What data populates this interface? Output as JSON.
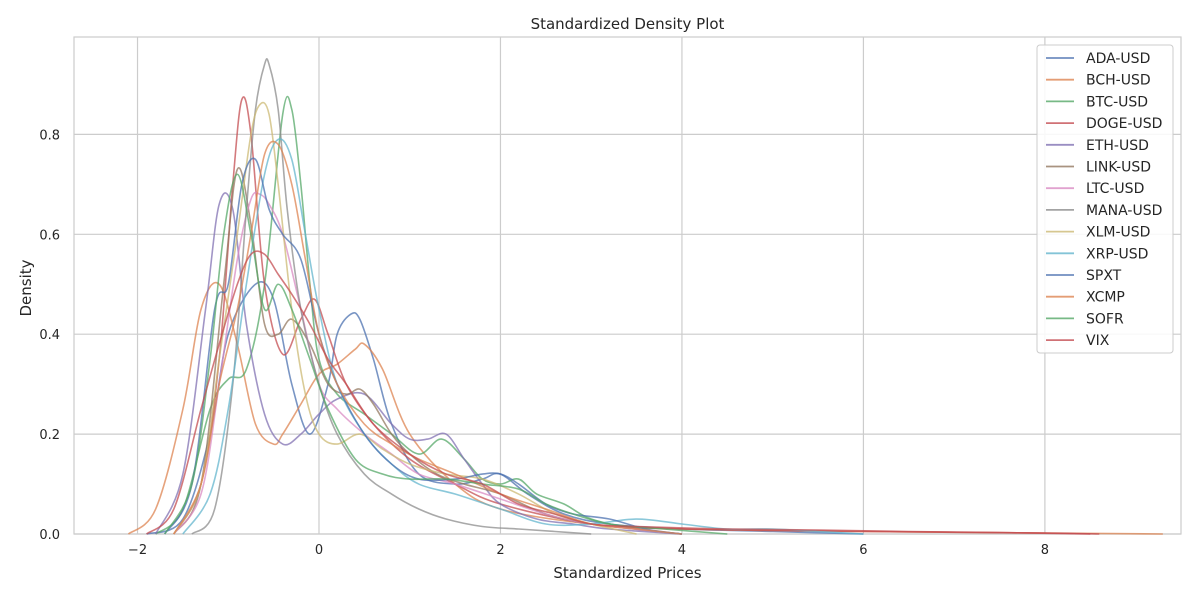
{
  "chart_data": {
    "type": "line",
    "title": "Standardized Density Plot",
    "xlabel": "Standardized Prices",
    "ylabel": "Density",
    "xlim": [
      -2.7,
      9.5
    ],
    "ylim": [
      0,
      0.995
    ],
    "xticks": [
      -2,
      0,
      2,
      4,
      6,
      8
    ],
    "yticks": [
      0.0,
      0.2,
      0.4,
      0.6,
      0.8
    ],
    "xtick_labels": [
      "−2",
      "0",
      "2",
      "4",
      "6",
      "8"
    ],
    "ytick_labels": [
      "0.0",
      "0.2",
      "0.4",
      "0.6",
      "0.8"
    ],
    "grid": true,
    "legend_position": "top-right",
    "series": [
      {
        "name": "ADA-USD",
        "color": "#4c72b0",
        "x": [
          -1.9,
          -1.5,
          -1.2,
          -1.0,
          -0.7,
          -0.5,
          -0.3,
          -0.1,
          0.1,
          0.2,
          0.35,
          0.45,
          0.6,
          0.8,
          1.1,
          1.5,
          1.8,
          2.0,
          2.3,
          2.7,
          3.2,
          4.0,
          5.0,
          6.0
        ],
        "y": [
          0.0,
          0.03,
          0.2,
          0.4,
          0.5,
          0.47,
          0.3,
          0.2,
          0.3,
          0.4,
          0.44,
          0.43,
          0.35,
          0.22,
          0.12,
          0.1,
          0.11,
          0.12,
          0.08,
          0.04,
          0.02,
          0.01,
          0.005,
          0.0
        ]
      },
      {
        "name": "BCH-USD",
        "color": "#dd8452",
        "x": [
          -2.1,
          -1.8,
          -1.5,
          -1.3,
          -1.1,
          -0.9,
          -0.7,
          -0.5,
          -0.4,
          -0.2,
          0.0,
          0.2,
          0.4,
          0.5,
          0.7,
          1.0,
          1.5,
          2.0,
          3.0,
          4.0,
          6.0,
          8.0,
          9.3
        ],
        "y": [
          0.0,
          0.05,
          0.25,
          0.45,
          0.5,
          0.38,
          0.22,
          0.18,
          0.2,
          0.26,
          0.32,
          0.34,
          0.37,
          0.38,
          0.33,
          0.2,
          0.1,
          0.05,
          0.02,
          0.01,
          0.005,
          0.002,
          0.0
        ]
      },
      {
        "name": "BTC-USD",
        "color": "#55a868",
        "x": [
          -1.8,
          -1.5,
          -1.2,
          -1.0,
          -0.8,
          -0.6,
          -0.4,
          -0.3,
          -0.2,
          -0.1,
          0.0,
          0.2,
          0.5,
          0.8,
          1.1,
          1.35,
          1.6,
          1.8,
          2.0,
          2.2,
          2.4,
          2.7,
          3.0,
          3.5,
          4.0
        ],
        "y": [
          0.0,
          0.05,
          0.25,
          0.31,
          0.33,
          0.5,
          0.84,
          0.85,
          0.7,
          0.5,
          0.35,
          0.28,
          0.24,
          0.2,
          0.16,
          0.19,
          0.15,
          0.11,
          0.1,
          0.11,
          0.08,
          0.06,
          0.03,
          0.01,
          0.0
        ]
      },
      {
        "name": "DOGE-USD",
        "color": "#c44e52",
        "x": [
          -1.6,
          -1.3,
          -1.1,
          -0.95,
          -0.85,
          -0.75,
          -0.6,
          -0.4,
          -0.2,
          -0.05,
          0.1,
          0.3,
          0.6,
          1.0,
          1.5,
          2.0,
          3.0,
          4.0,
          6.0,
          8.0,
          8.6
        ],
        "y": [
          0.0,
          0.1,
          0.35,
          0.7,
          0.87,
          0.8,
          0.5,
          0.36,
          0.43,
          0.47,
          0.4,
          0.3,
          0.22,
          0.15,
          0.1,
          0.06,
          0.02,
          0.01,
          0.005,
          0.002,
          0.0
        ]
      },
      {
        "name": "ETH-USD",
        "color": "#8172b3",
        "x": [
          -1.8,
          -1.5,
          -1.25,
          -1.1,
          -0.95,
          -0.8,
          -0.6,
          -0.4,
          -0.2,
          0.0,
          0.2,
          0.5,
          0.8,
          1.0,
          1.2,
          1.4,
          1.6,
          1.8,
          2.0,
          2.4,
          2.8,
          3.2,
          4.0
        ],
        "y": [
          0.0,
          0.12,
          0.45,
          0.66,
          0.65,
          0.42,
          0.24,
          0.18,
          0.2,
          0.24,
          0.27,
          0.28,
          0.22,
          0.19,
          0.19,
          0.2,
          0.15,
          0.1,
          0.06,
          0.03,
          0.02,
          0.01,
          0.0
        ]
      },
      {
        "name": "LINK-USD",
        "color": "#937860",
        "x": [
          -1.6,
          -1.3,
          -1.05,
          -0.9,
          -0.75,
          -0.6,
          -0.45,
          -0.3,
          -0.1,
          0.1,
          0.3,
          0.45,
          0.6,
          0.8,
          1.0,
          1.3,
          1.6,
          2.0,
          2.5,
          3.0,
          4.0
        ],
        "y": [
          0.0,
          0.1,
          0.5,
          0.73,
          0.62,
          0.42,
          0.4,
          0.43,
          0.38,
          0.3,
          0.28,
          0.29,
          0.26,
          0.2,
          0.16,
          0.12,
          0.1,
          0.08,
          0.04,
          0.02,
          0.0
        ]
      },
      {
        "name": "LTC-USD",
        "color": "#da8bc3",
        "x": [
          -1.6,
          -1.3,
          -1.1,
          -0.9,
          -0.75,
          -0.65,
          -0.55,
          -0.4,
          -0.2,
          0.0,
          0.2,
          0.5,
          0.8,
          1.1,
          1.5,
          2.0,
          2.5,
          3.0,
          4.0
        ],
        "y": [
          0.0,
          0.08,
          0.3,
          0.55,
          0.67,
          0.68,
          0.66,
          0.6,
          0.45,
          0.3,
          0.25,
          0.2,
          0.16,
          0.12,
          0.1,
          0.07,
          0.04,
          0.02,
          0.0
        ]
      },
      {
        "name": "MANA-USD",
        "color": "#8c8c8c",
        "x": [
          -1.4,
          -1.15,
          -0.95,
          -0.8,
          -0.7,
          -0.6,
          -0.55,
          -0.45,
          -0.35,
          -0.2,
          0.0,
          0.2,
          0.5,
          0.8,
          1.1,
          1.4,
          1.8,
          2.2,
          2.6,
          3.0
        ],
        "y": [
          0.0,
          0.05,
          0.3,
          0.65,
          0.85,
          0.94,
          0.94,
          0.85,
          0.65,
          0.45,
          0.3,
          0.2,
          0.12,
          0.08,
          0.05,
          0.03,
          0.015,
          0.01,
          0.005,
          0.0
        ]
      },
      {
        "name": "XLM-USD",
        "color": "#ccb974",
        "x": [
          -1.6,
          -1.3,
          -1.1,
          -0.9,
          -0.75,
          -0.65,
          -0.55,
          -0.45,
          -0.3,
          -0.15,
          0.0,
          0.2,
          0.45,
          0.7,
          1.0,
          1.4,
          1.8,
          2.2,
          2.6,
          3.0,
          3.5
        ],
        "y": [
          0.0,
          0.1,
          0.35,
          0.6,
          0.8,
          0.86,
          0.84,
          0.7,
          0.45,
          0.28,
          0.2,
          0.18,
          0.2,
          0.17,
          0.14,
          0.12,
          0.11,
          0.08,
          0.04,
          0.02,
          0.0
        ]
      },
      {
        "name": "XRP-USD",
        "color": "#64b5cd",
        "x": [
          -1.5,
          -1.2,
          -1.0,
          -0.8,
          -0.6,
          -0.45,
          -0.3,
          -0.15,
          0.0,
          0.2,
          0.5,
          0.8,
          1.1,
          1.5,
          2.0,
          2.5,
          3.0,
          3.5,
          4.0,
          4.5,
          5.0,
          5.5,
          6.0
        ],
        "y": [
          0.0,
          0.08,
          0.25,
          0.5,
          0.72,
          0.79,
          0.75,
          0.6,
          0.45,
          0.3,
          0.2,
          0.14,
          0.1,
          0.08,
          0.05,
          0.02,
          0.02,
          0.03,
          0.02,
          0.01,
          0.01,
          0.005,
          0.0
        ]
      },
      {
        "name": "SPXT",
        "color": "#4c72b0",
        "x": [
          -1.7,
          -1.4,
          -1.15,
          -1.0,
          -0.85,
          -0.7,
          -0.55,
          -0.4,
          -0.2,
          0.0,
          0.2,
          0.5,
          0.8,
          1.1,
          1.5,
          1.8,
          2.0,
          2.2,
          2.5,
          2.8,
          3.2,
          3.6,
          4.0
        ],
        "y": [
          0.0,
          0.1,
          0.45,
          0.5,
          0.7,
          0.75,
          0.65,
          0.6,
          0.55,
          0.4,
          0.3,
          0.2,
          0.14,
          0.11,
          0.11,
          0.12,
          0.12,
          0.1,
          0.06,
          0.04,
          0.03,
          0.01,
          0.0
        ]
      },
      {
        "name": "XCMP",
        "color": "#dd8452",
        "x": [
          -1.6,
          -1.3,
          -1.1,
          -0.9,
          -0.75,
          -0.6,
          -0.45,
          -0.3,
          -0.15,
          0.0,
          0.2,
          0.5,
          0.8,
          1.1,
          1.5,
          2.0,
          2.5,
          3.0,
          3.5,
          4.0
        ],
        "y": [
          0.0,
          0.1,
          0.3,
          0.45,
          0.6,
          0.76,
          0.78,
          0.7,
          0.55,
          0.4,
          0.3,
          0.22,
          0.18,
          0.15,
          0.12,
          0.08,
          0.05,
          0.02,
          0.01,
          0.0
        ]
      },
      {
        "name": "SOFR",
        "color": "#55a868",
        "x": [
          -1.7,
          -1.4,
          -1.2,
          -1.05,
          -0.9,
          -0.75,
          -0.6,
          -0.45,
          -0.3,
          -0.1,
          0.1,
          0.4,
          0.7,
          1.0,
          1.4,
          1.8,
          2.2,
          2.5,
          2.8,
          3.2,
          3.8,
          4.5
        ],
        "y": [
          0.0,
          0.1,
          0.35,
          0.6,
          0.72,
          0.6,
          0.45,
          0.5,
          0.45,
          0.35,
          0.25,
          0.15,
          0.12,
          0.11,
          0.11,
          0.1,
          0.09,
          0.06,
          0.04,
          0.02,
          0.01,
          0.0
        ]
      },
      {
        "name": "VIX",
        "color": "#c44e52",
        "x": [
          -1.9,
          -1.6,
          -1.3,
          -1.1,
          -0.9,
          -0.75,
          -0.6,
          -0.45,
          -0.3,
          -0.1,
          0.1,
          0.3,
          0.6,
          1.0,
          1.4,
          1.8,
          2.2,
          2.6,
          3.0,
          3.5,
          4.5,
          5.5,
          6.5,
          7.5,
          8.5
        ],
        "y": [
          0.0,
          0.05,
          0.25,
          0.38,
          0.5,
          0.56,
          0.56,
          0.52,
          0.48,
          0.42,
          0.35,
          0.3,
          0.22,
          0.16,
          0.12,
          0.1,
          0.06,
          0.04,
          0.02,
          0.015,
          0.01,
          0.008,
          0.005,
          0.003,
          0.0
        ]
      }
    ]
  }
}
